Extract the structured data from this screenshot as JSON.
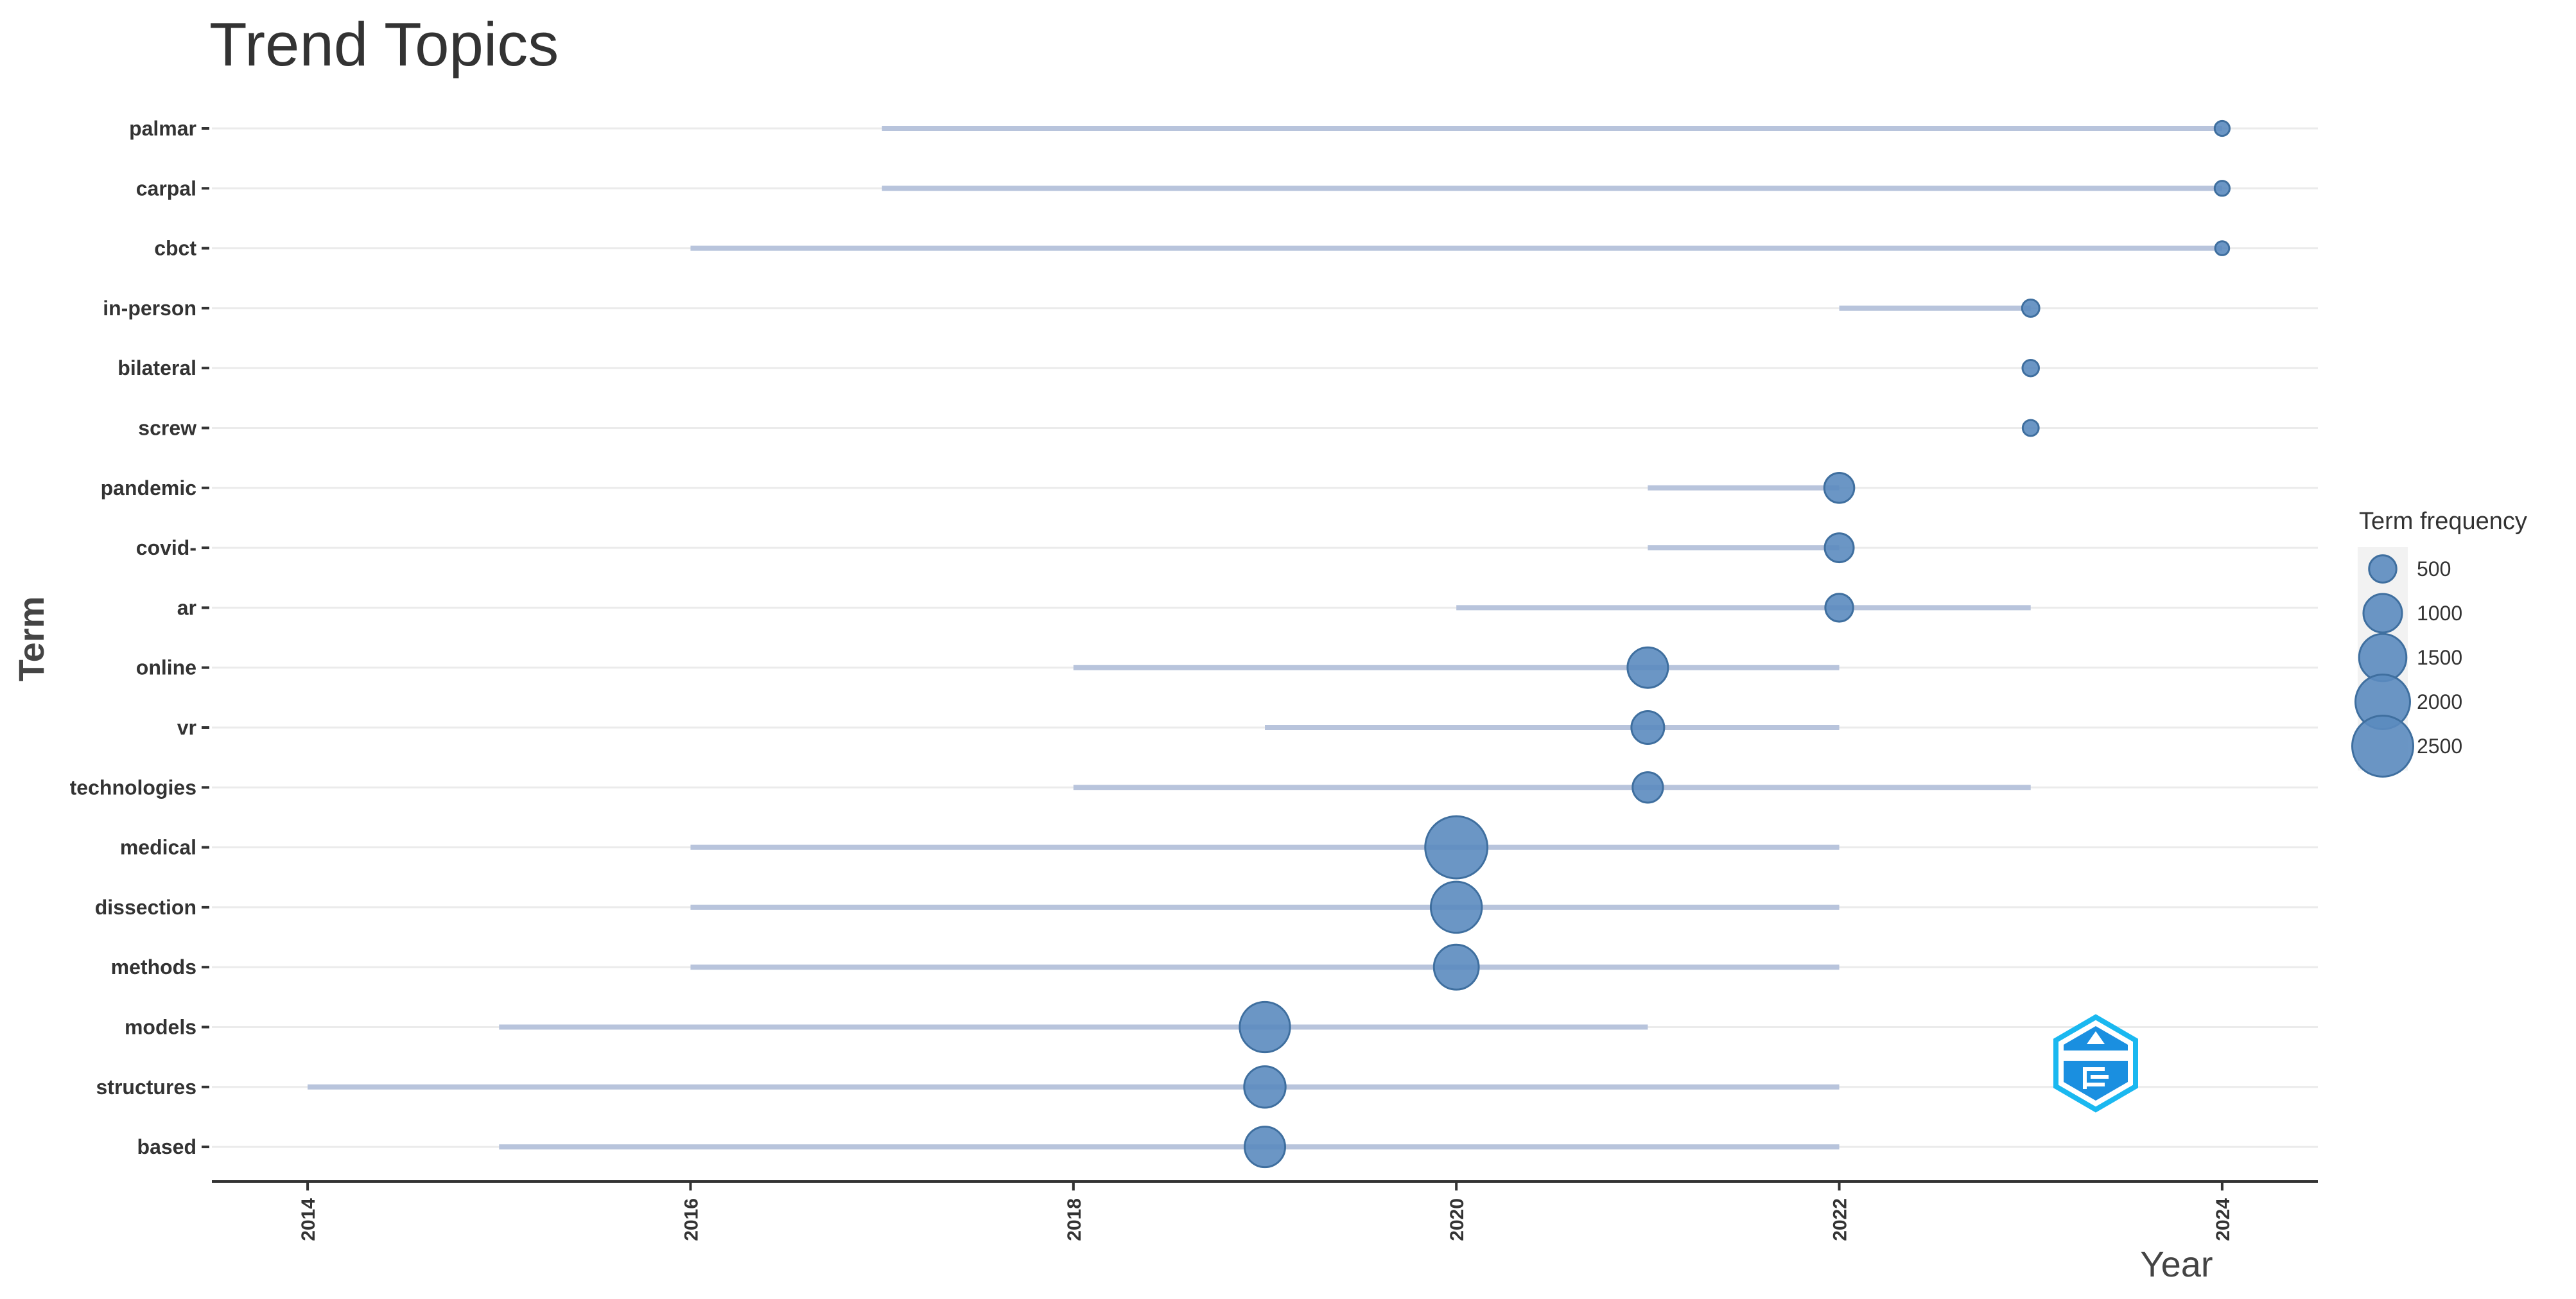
{
  "chart_data": {
    "type": "scatter",
    "title": "Trend Topics",
    "xlabel": "Year",
    "ylabel": "Term",
    "xlim": [
      2013.5,
      2024.5
    ],
    "x_ticks": [
      "2014",
      "2016",
      "2018",
      "2020",
      "2022",
      "2024"
    ],
    "grid": "horizontal",
    "legend_position": "right",
    "legend": {
      "title": "Term frequency",
      "values": [
        500,
        1000,
        1500,
        2000,
        2500
      ],
      "labels": [
        "500",
        "1000",
        "1500",
        "2000",
        "2500"
      ]
    },
    "colors": {
      "point": "#5b8bbf",
      "range": "#b8c4dc",
      "grid": "#ebebeb",
      "axis": "#333333"
    },
    "terms": [
      {
        "term": "palmar",
        "q1": 2017,
        "median": 2024,
        "q3": 2024,
        "freq": 150
      },
      {
        "term": "carpal",
        "q1": 2017,
        "median": 2024,
        "q3": 2024,
        "freq": 150
      },
      {
        "term": "cbct",
        "q1": 2016,
        "median": 2024,
        "q3": 2024,
        "freq": 130
      },
      {
        "term": "in-person",
        "q1": 2022,
        "median": 2023,
        "q3": 2023,
        "freq": 200
      },
      {
        "term": "bilateral",
        "q1": 2023,
        "median": 2023,
        "q3": 2023,
        "freq": 180
      },
      {
        "term": "screw",
        "q1": 2023,
        "median": 2023,
        "q3": 2023,
        "freq": 170
      },
      {
        "term": "pandemic",
        "q1": 2021,
        "median": 2022,
        "q3": 2022,
        "freq": 600
      },
      {
        "term": "covid-",
        "q1": 2021,
        "median": 2022,
        "q3": 2022,
        "freq": 560
      },
      {
        "term": "ar",
        "q1": 2020,
        "median": 2022,
        "q3": 2023,
        "freq": 520
      },
      {
        "term": "online",
        "q1": 2018,
        "median": 2021,
        "q3": 2022,
        "freq": 1100
      },
      {
        "term": "vr",
        "q1": 2019,
        "median": 2021,
        "q3": 2022,
        "freq": 720
      },
      {
        "term": "technologies",
        "q1": 2018,
        "median": 2021,
        "q3": 2023,
        "freq": 620
      },
      {
        "term": "medical",
        "q1": 2016,
        "median": 2020,
        "q3": 2022,
        "freq": 2600
      },
      {
        "term": "dissection",
        "q1": 2016,
        "median": 2020,
        "q3": 2022,
        "freq": 1750
      },
      {
        "term": "methods",
        "q1": 2016,
        "median": 2020,
        "q3": 2022,
        "freq": 1350
      },
      {
        "term": "models",
        "q1": 2015,
        "median": 2019,
        "q3": 2021,
        "freq": 1700
      },
      {
        "term": "structures",
        "q1": 2014,
        "median": 2019,
        "q3": 2022,
        "freq": 1150
      },
      {
        "term": "based",
        "q1": 2015,
        "median": 2019,
        "q3": 2022,
        "freq": 1100
      }
    ]
  }
}
